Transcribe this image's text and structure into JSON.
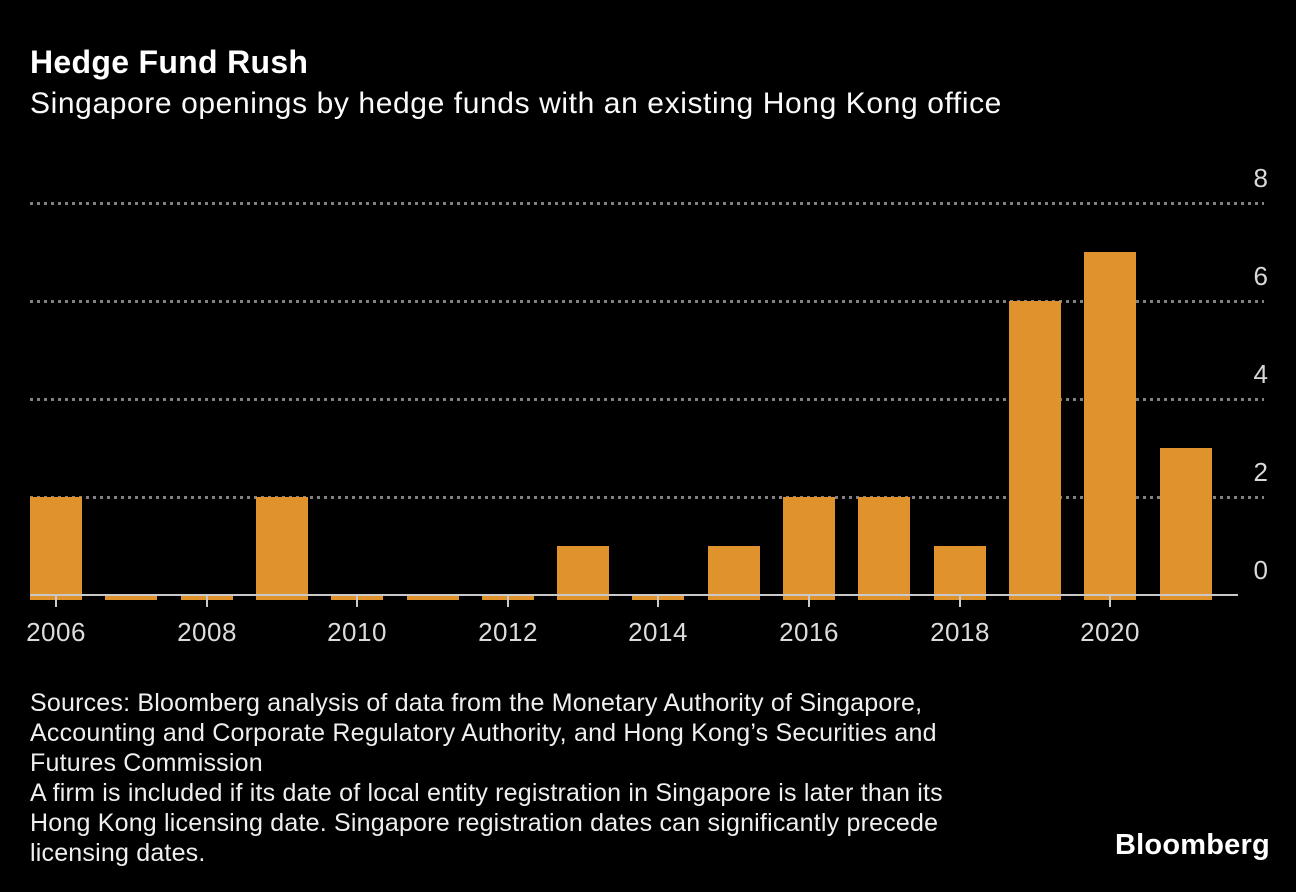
{
  "header": {
    "title": "Hedge Fund Rush",
    "subtitle": "Singapore openings by hedge funds with an existing Hong Kong office"
  },
  "chart_data": {
    "type": "bar",
    "title": "Hedge Fund Rush",
    "subtitle": "Singapore openings by hedge funds with an existing Hong Kong office",
    "categories": [
      2006,
      2007,
      2008,
      2009,
      2010,
      2011,
      2012,
      2013,
      2014,
      2015,
      2016,
      2017,
      2018,
      2019,
      2020,
      2021
    ],
    "values": [
      2,
      0,
      0,
      2,
      0,
      0,
      0,
      1,
      0,
      1,
      2,
      2,
      1,
      6,
      7,
      3
    ],
    "xlabel": "",
    "ylabel": "",
    "ylim": [
      0,
      8
    ],
    "y_ticks": [
      0,
      2,
      4,
      6,
      8
    ],
    "y_gridlines": [
      2,
      4,
      6,
      8
    ],
    "x_tick_labels": [
      "2006",
      "2008",
      "2010",
      "2012",
      "2014",
      "2016",
      "2018",
      "2020"
    ],
    "y_axis_side": "right",
    "grid": "horizontal dotted",
    "legend": "none",
    "zero_value_rendering": "thin sliver below baseline",
    "bar_color": "#e0922d",
    "background_color": "#000000",
    "gridline_color": "#828282",
    "axis_color": "#c9c9c9"
  },
  "footer": {
    "lines": [
      "Sources: Bloomberg analysis of data from the Monetary Authority of Singapore,",
      "Accounting and Corporate Regulatory Authority, and Hong Kong’s Securities and",
      "Futures Commission",
      "A firm is included if its date of local entity registration in Singapore is later than its",
      "Hong Kong licensing date. Singapore registration dates can significantly precede",
      "licensing dates."
    ],
    "logo": "Bloomberg"
  }
}
